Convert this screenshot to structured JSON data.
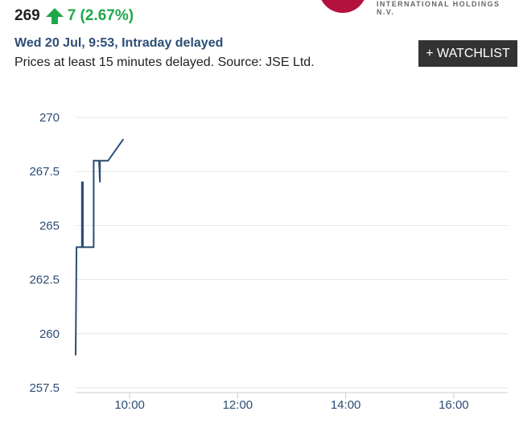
{
  "quote": {
    "price": "269",
    "change": "7 (2.67%)",
    "timestamp": "Wed 20 Jul, 9:53, Intraday delayed",
    "notice": "Prices at least 15 minutes delayed. Source: JSE Ltd.",
    "up_color": "#1fa84a"
  },
  "company": {
    "tagline": "INTERNATIONAL HOLDINGS N.V.",
    "brand_color": "#b3123c"
  },
  "watchlist_button": {
    "label": "+ WATCHLIST"
  },
  "chart_data": {
    "type": "line",
    "x_ticks": [
      "10:00",
      "12:00",
      "14:00",
      "16:00"
    ],
    "y_ticks": [
      "270",
      "267.5",
      "265",
      "262.5",
      "260",
      "257.5"
    ],
    "ylim": [
      257.5,
      270
    ],
    "xlim": [
      "09:00",
      "17:00"
    ],
    "grid": "horizontal",
    "line_color": "#2c4d76",
    "series": [
      {
        "x": [
          "09:00",
          "09:01",
          "09:01",
          "09:07",
          "09:07",
          "09:08",
          "09:08",
          "09:20",
          "09:20",
          "09:26",
          "09:26",
          "09:27",
          "09:27",
          "09:36",
          "09:36",
          "09:53"
        ],
        "values": [
          259,
          264,
          264,
          264,
          267,
          267,
          264,
          264,
          268,
          268,
          268,
          267,
          268,
          268,
          268,
          269
        ]
      }
    ]
  }
}
